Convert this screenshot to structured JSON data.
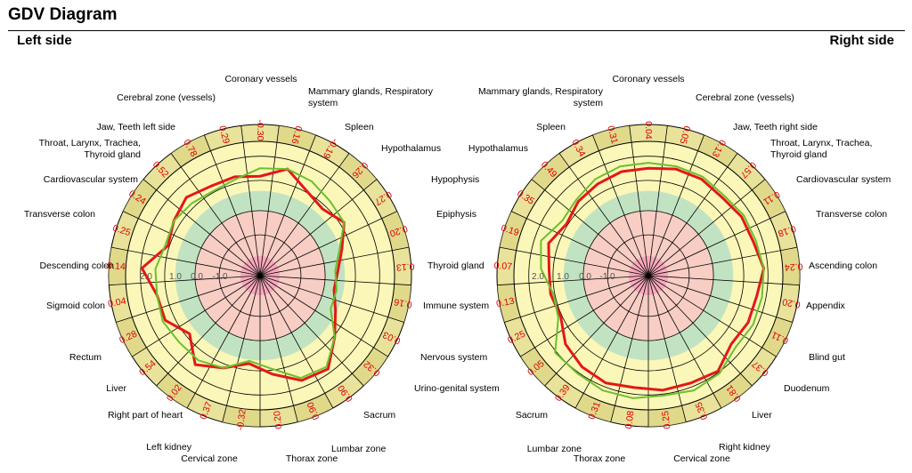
{
  "header": {
    "title": "GDV Diagram",
    "left_side": "Left side",
    "right_side": "Right side"
  },
  "colors": {
    "outer_band": "#e8e29a",
    "rim_ring": "#d8d27e",
    "yellow_zone": "#fbf7b8",
    "green_zone": "#c2e3c2",
    "pink_zone": "#f7cdc4",
    "center": "#f7a8bb",
    "red_line": "#e31818",
    "green_line": "#6cbf2e",
    "value_text": "#e00000"
  },
  "chart_data": [
    {
      "type": "radar",
      "side": "Left side",
      "scale_labels": [
        "2.0",
        "1.0",
        "0.0",
        "-1.0"
      ],
      "sectors": [
        {
          "value": "-0.30"
        },
        {
          "value": "0.16"
        },
        {
          "value": "-0.19"
        },
        {
          "value": "0.26"
        },
        {
          "value": "0.27"
        },
        {
          "value": "0.20"
        },
        {
          "value": "0.13"
        },
        {
          "value": "0.16"
        },
        {
          "value": "0.03"
        },
        {
          "value": "0.32"
        },
        {
          "value": "0.90"
        },
        {
          "value": "0.90"
        },
        {
          "value": "0.20"
        },
        {
          "value": "-0.32"
        },
        {
          "value": "0.37"
        },
        {
          "value": "0.02"
        },
        {
          "value": "0.54"
        },
        {
          "value": "0.28"
        },
        {
          "value": "0.04"
        },
        {
          "value": "-0.14"
        },
        {
          "value": "0.25"
        },
        {
          "value": "0.24"
        },
        {
          "value": "0.52"
        },
        {
          "value": "0.78"
        },
        {
          "value": "0.29"
        }
      ],
      "labels": [
        {
          "text": "Coronary vessels"
        },
        {
          "text": "Mammary glands, Respiratory",
          "line2": "system"
        },
        {
          "text": "Spleen"
        },
        {
          "text": "Hypothalamus"
        },
        {
          "text": "Hypophysis"
        },
        {
          "text": "Epiphysis"
        },
        {
          "text": "Thyroid gland"
        },
        {
          "text": "Immune system"
        },
        {
          "text": "Nervous system"
        },
        {
          "text": "Urino-genital system"
        },
        {
          "text": "Sacrum"
        },
        {
          "text": "Lumbar zone"
        },
        {
          "text": "Thorax zone"
        },
        {
          "text": "Cervical zone"
        },
        {
          "text": "Left kidney"
        },
        {
          "text": "Right part of heart"
        },
        {
          "text": "Liver"
        },
        {
          "text": "Rectum"
        },
        {
          "text": "Sigmoid colon"
        },
        {
          "text": "Descending colon"
        },
        {
          "text": "Transverse colon"
        },
        {
          "text": "Cardiovascular system"
        },
        {
          "text": "Throat, Larynx, Trachea,",
          "line2": "Thyroid gland"
        },
        {
          "text": "Jaw, Teeth left side"
        },
        {
          "text": "Cerebral zone (vessels)"
        }
      ],
      "series": [
        {
          "color": "red",
          "values": [
            0.74,
            0.82,
            0.72,
            0.68,
            0.74,
            0.64,
            0.58,
            0.56,
            0.62,
            0.72,
            0.86,
            0.84,
            0.74,
            0.66,
            0.74,
            0.82,
            0.68,
            0.78,
            0.78,
            0.88,
            0.72,
            0.76,
            0.8,
            0.76,
            0.76
          ]
        },
        {
          "color": "green",
          "values": [
            0.8,
            0.82,
            0.8,
            0.76,
            0.74,
            0.62,
            0.56,
            0.58,
            0.58,
            0.72,
            0.84,
            0.82,
            0.7,
            0.64,
            0.74,
            0.78,
            0.78,
            0.8,
            0.78,
            0.78,
            0.74,
            0.76,
            0.74,
            0.72,
            0.74
          ]
        }
      ]
    },
    {
      "type": "radar",
      "side": "Right side",
      "scale_labels": [
        "2.0",
        "1.0",
        "0.0",
        "-1.0"
      ],
      "sectors": [
        {
          "value": "0.04"
        },
        {
          "value": "0.31"
        },
        {
          "value": "0.34"
        },
        {
          "value": "0.49"
        },
        {
          "value": "0.35"
        },
        {
          "value": "0.19"
        },
        {
          "value": "0.07"
        },
        {
          "value": "0.13"
        },
        {
          "value": "0.25"
        },
        {
          "value": "0.05"
        },
        {
          "value": "0.39"
        },
        {
          "value": "0.31"
        },
        {
          "value": "0.08"
        },
        {
          "value": "0.25"
        },
        {
          "value": "0.35"
        },
        {
          "value": "0.81"
        },
        {
          "value": "0.37"
        },
        {
          "value": "0.11"
        },
        {
          "value": "0.20"
        },
        {
          "value": "0.24"
        },
        {
          "value": "0.18"
        },
        {
          "value": "0.11"
        },
        {
          "value": "0.57"
        },
        {
          "value": "0.13"
        },
        {
          "value": "0.05"
        }
      ],
      "labels": [
        {
          "text": "Coronary vessels"
        },
        {
          "text": "Cerebral zone (vessels)"
        },
        {
          "text": "Jaw, Teeth right side"
        },
        {
          "text": "Throat, Larynx, Trachea,",
          "line2": "Thyroid gland"
        },
        {
          "text": "Cardiovascular system"
        },
        {
          "text": "Transverse colon"
        },
        {
          "text": "Ascending colon"
        },
        {
          "text": "Appendix"
        },
        {
          "text": "Blind gut"
        },
        {
          "text": "Duodenum"
        },
        {
          "text": "Liver"
        },
        {
          "text": "Right kidney"
        },
        {
          "text": "Cervical zone"
        },
        {
          "text": "Thorax zone"
        },
        {
          "text": "Lumbar zone"
        },
        {
          "text": "Sacrum"
        },
        {
          "text": ""
        },
        {
          "text": ""
        },
        {
          "text": ""
        },
        {
          "text": ""
        },
        {
          "text": ""
        },
        {
          "text": "Hypothalamus"
        },
        {
          "text": "Spleen"
        },
        {
          "text": ""
        },
        {
          "text": "Mammary glands, Respiratory",
          "line2": "system"
        }
      ],
      "series": [
        {
          "color": "red",
          "values": [
            0.8,
            0.8,
            0.78,
            0.76,
            0.72,
            0.78,
            0.74,
            0.74,
            0.72,
            0.8,
            0.84,
            0.86,
            0.84,
            0.86,
            0.86,
            0.88,
            0.8,
            0.82,
            0.82,
            0.86,
            0.82,
            0.82,
            0.8,
            0.82,
            0.82
          ]
        },
        {
          "color": "green",
          "values": [
            0.84,
            0.84,
            0.82,
            0.78,
            0.76,
            0.84,
            0.8,
            0.72,
            0.74,
            0.9,
            0.9,
            0.92,
            0.92,
            0.9,
            0.92,
            0.9,
            0.84,
            0.86,
            0.86,
            0.86,
            0.84,
            0.84,
            0.82,
            0.84,
            0.84
          ]
        }
      ]
    }
  ]
}
